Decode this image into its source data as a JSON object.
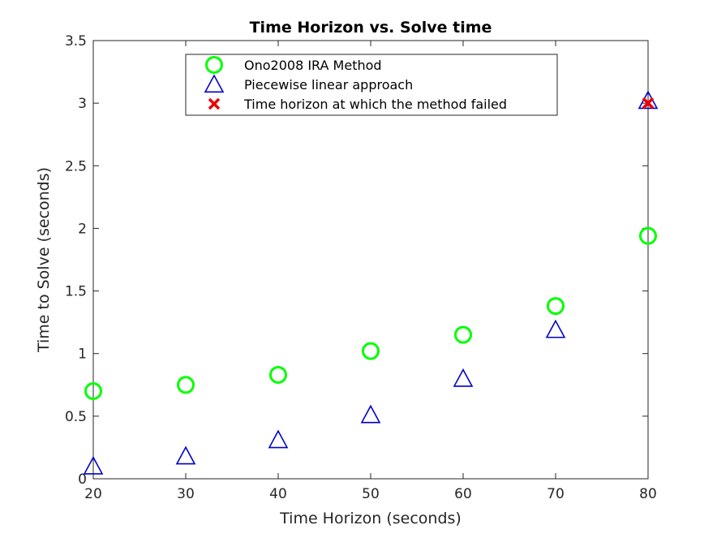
{
  "chart_data": {
    "type": "scatter",
    "title": "Time Horizon vs. Solve time",
    "xlabel": "Time Horizon (seconds)",
    "ylabel": "Time to Solve (seconds)",
    "xlim": [
      20,
      80
    ],
    "ylim": [
      0,
      3.5
    ],
    "xticks": [
      20,
      30,
      40,
      50,
      60,
      70,
      80
    ],
    "yticks": [
      0,
      0.5,
      1,
      1.5,
      2,
      2.5,
      3,
      3.5
    ],
    "xtick_labels": [
      "20",
      "30",
      "40",
      "50",
      "60",
      "70",
      "80"
    ],
    "ytick_labels": [
      "0",
      "0.5",
      "1",
      "1.5",
      "2",
      "2.5",
      "3",
      "3.5"
    ],
    "grid": false,
    "legend_position": "top-center",
    "series": [
      {
        "name": "Ono2008 IRA Method",
        "marker": "circle",
        "color": "#00ff00",
        "x": [
          20,
          30,
          40,
          50,
          60,
          70,
          80
        ],
        "y": [
          0.7,
          0.75,
          0.83,
          1.02,
          1.15,
          1.38,
          1.94
        ]
      },
      {
        "name": "Piecewise linear approach",
        "marker": "triangle",
        "color": "#0000cc",
        "x": [
          20,
          30,
          40,
          50,
          60,
          70,
          80
        ],
        "y": [
          0.1,
          0.18,
          0.31,
          0.51,
          0.8,
          1.19,
          3.02
        ]
      },
      {
        "name": "Time horizon at which the method failed",
        "marker": "x",
        "color": "#ee0000",
        "x": [
          80
        ],
        "y": [
          3.0
        ]
      }
    ]
  }
}
